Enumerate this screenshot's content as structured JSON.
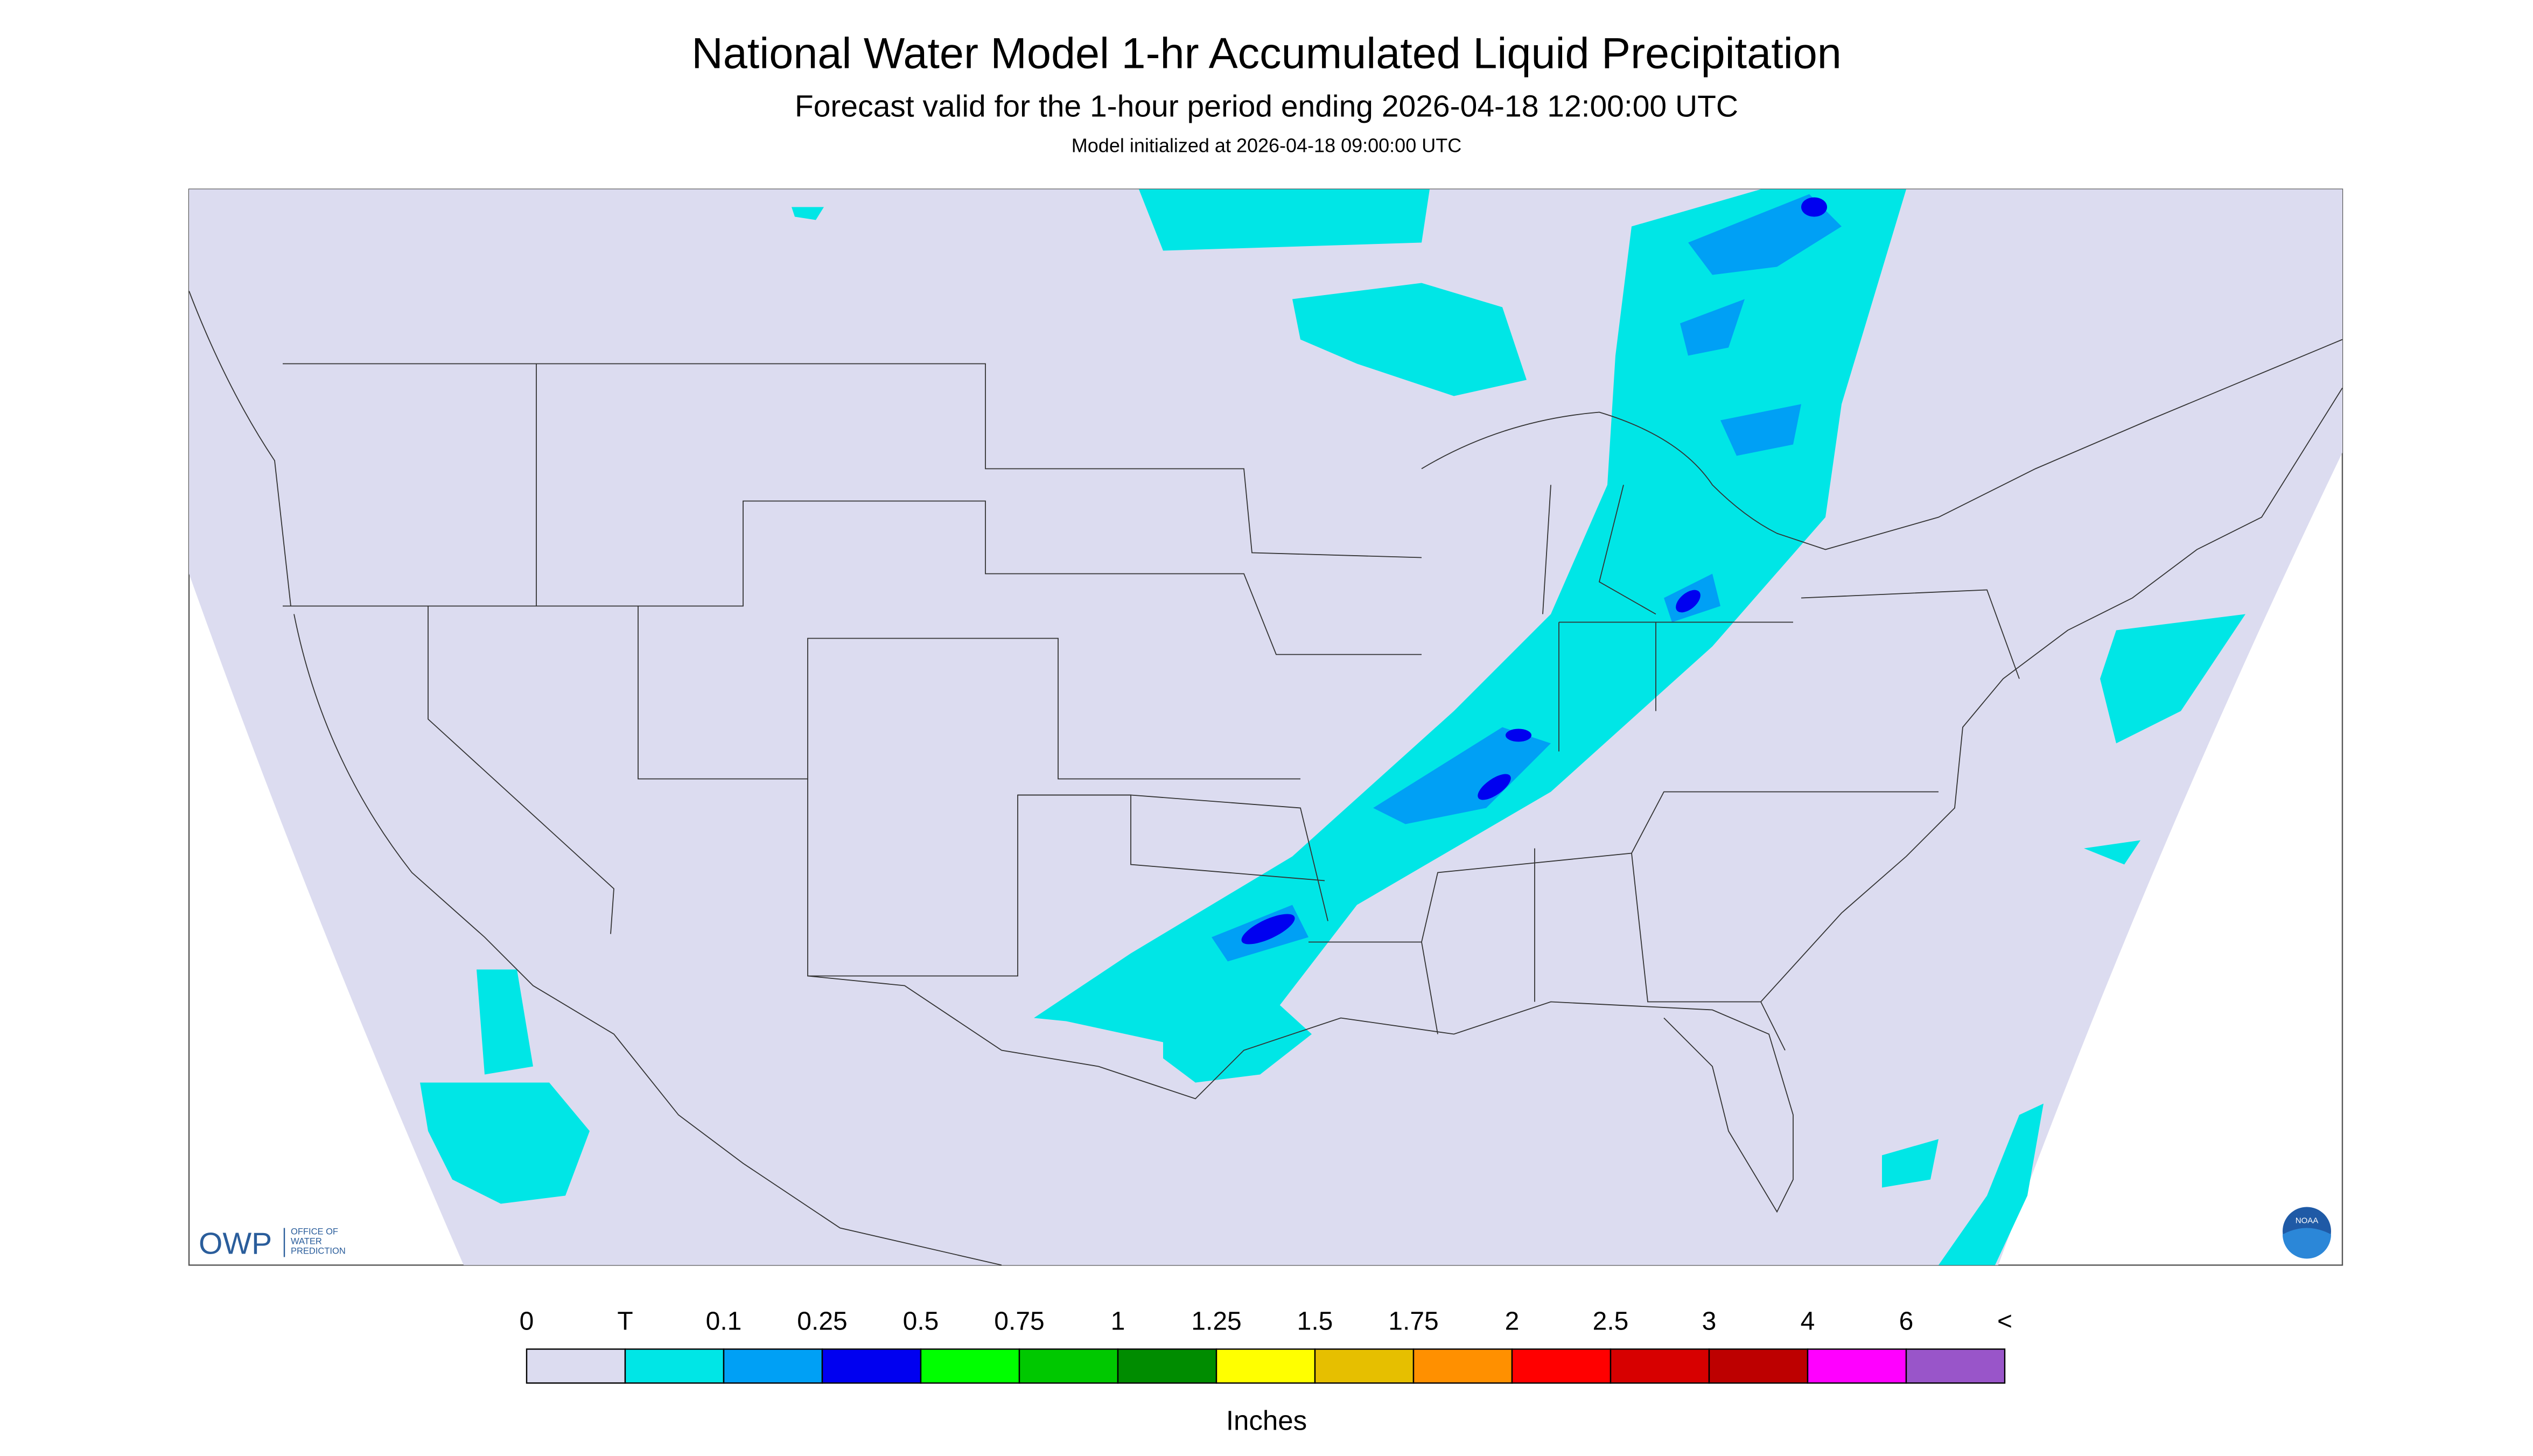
{
  "header": {
    "title": "National Water Model 1-hr Accumulated Liquid Precipitation",
    "subtitle": "Forecast valid for the 1-hour period ending 2026-04-18 12:00:00 UTC",
    "note": "Model initialized at 2026-04-18 09:00:00 UTC"
  },
  "logo": {
    "acronym": "OWP",
    "line1": "OFFICE OF",
    "line2": "WATER",
    "line3": "PREDICTION",
    "agency": "NOAA"
  },
  "legend": {
    "title": "Inches",
    "labels": [
      "0",
      "T",
      "0.1",
      "0.25",
      "0.5",
      "0.75",
      "1",
      "1.25",
      "1.5",
      "1.75",
      "2",
      "2.5",
      "3",
      "4",
      "6",
      "<"
    ],
    "colors": [
      "#dcdcf0",
      "#00e6e6",
      "#00a0f5",
      "#0000f0",
      "#00ff00",
      "#00c800",
      "#008c00",
      "#ffff00",
      "#e6bf00",
      "#ff9000",
      "#ff0000",
      "#d70000",
      "#bd0000",
      "#ff00ff",
      "#9955c9"
    ]
  }
}
